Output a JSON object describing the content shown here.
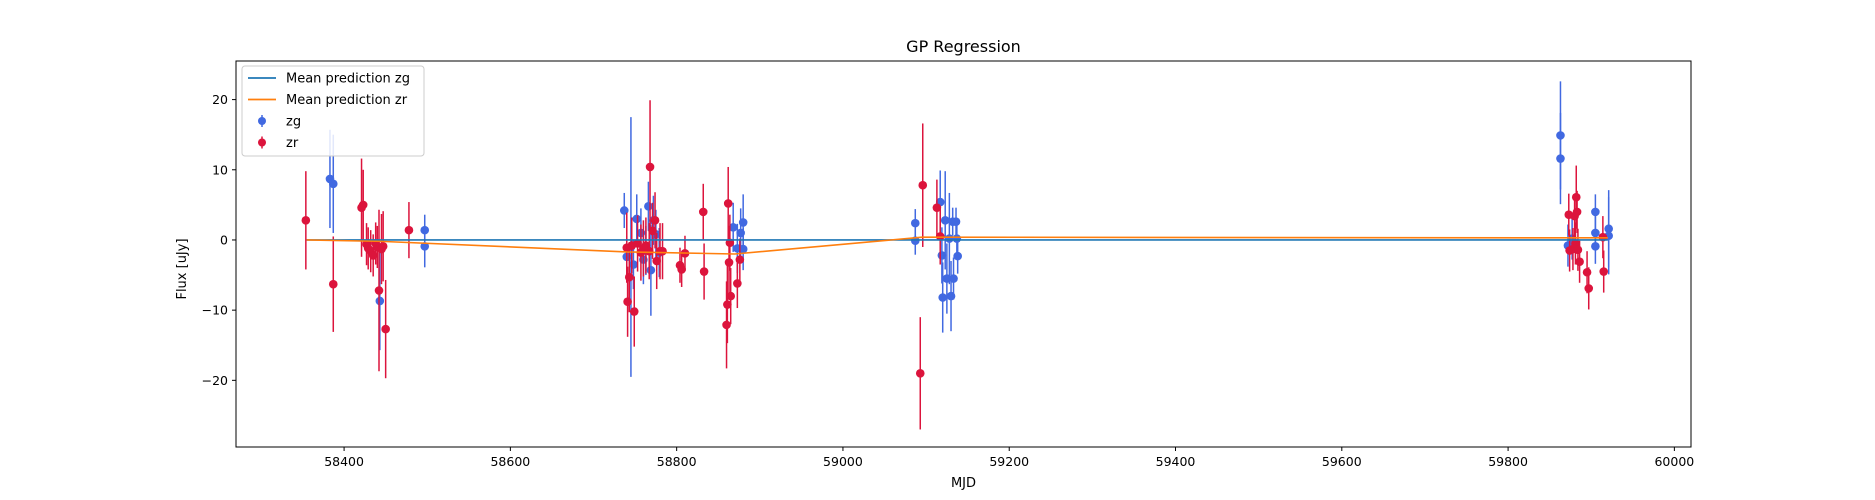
{
  "chart_data": {
    "type": "scatter",
    "title": "GP Regression",
    "xlabel": "MJD",
    "ylabel": "Flux [uJy]",
    "xlim": [
      58270,
      60020
    ],
    "ylim": [
      -29.5,
      25.5
    ],
    "xticks": [
      58400,
      58600,
      58800,
      59000,
      59200,
      59400,
      59600,
      59800,
      60000
    ],
    "yticks": [
      -20,
      -10,
      0,
      10,
      20
    ],
    "ytick_labels": [
      "−20",
      "−10",
      "0",
      "10",
      "20"
    ],
    "grid": false,
    "legend": {
      "location": "top-left",
      "entries": [
        {
          "label": "Mean prediction zg",
          "kind": "line",
          "color": "#1f77b4"
        },
        {
          "label": "Mean prediction zr",
          "kind": "line",
          "color": "#ff7f0e"
        },
        {
          "label": "zg",
          "kind": "errorbar",
          "color": "#4169e1"
        },
        {
          "label": "zr",
          "kind": "errorbar",
          "color": "#dc143c"
        }
      ]
    },
    "lines": [
      {
        "name": "Mean prediction zg",
        "color": "#1f77b4",
        "x": [
          58355,
          59920
        ],
        "y": [
          0.0,
          0.0
        ]
      },
      {
        "name": "Mean prediction zr",
        "color": "#ff7f0e",
        "x": [
          58355,
          58445,
          58740,
          58870,
          59095,
          59870,
          59920
        ],
        "y": [
          0.0,
          -0.2,
          -1.7,
          -2.0,
          0.4,
          0.3,
          0.3
        ]
      }
    ],
    "series": [
      {
        "name": "zg",
        "color": "#4169e1",
        "points": [
          {
            "x": 58383,
            "y": 8.7,
            "err": 7.0
          },
          {
            "x": 58387,
            "y": 8.0,
            "err": 7.0
          },
          {
            "x": 58443,
            "y": -8.7,
            "err": 7.0
          },
          {
            "x": 58497,
            "y": 1.4,
            "err": 2.2
          },
          {
            "x": 58497,
            "y": -0.9,
            "err": 3.0
          },
          {
            "x": 58737,
            "y": 4.2,
            "err": 2.5
          },
          {
            "x": 58740,
            "y": -2.4,
            "err": 3.0
          },
          {
            "x": 58745,
            "y": -1.0,
            "err": 18.5
          },
          {
            "x": 58748,
            "y": -3.5,
            "err": 3.5
          },
          {
            "x": 58752,
            "y": 3.0,
            "err": 3.5
          },
          {
            "x": 58757,
            "y": 1.0,
            "err": 3.5
          },
          {
            "x": 58760,
            "y": -2.8,
            "err": 3.5
          },
          {
            "x": 58763,
            "y": -1.5,
            "err": 3.5
          },
          {
            "x": 58766,
            "y": 4.8,
            "err": 3.5
          },
          {
            "x": 58769,
            "y": -4.3,
            "err": 6.5
          },
          {
            "x": 58772,
            "y": 2.8,
            "err": 3.5
          },
          {
            "x": 58775,
            "y": 0.8,
            "err": 3.5
          },
          {
            "x": 58779,
            "y": -1.8,
            "err": 3.5
          },
          {
            "x": 58868,
            "y": 1.8,
            "err": 3.5
          },
          {
            "x": 58873,
            "y": -1.2,
            "err": 3.5
          },
          {
            "x": 58877,
            "y": 1.0,
            "err": 3.5
          },
          {
            "x": 58880,
            "y": 2.5,
            "err": 4.0
          },
          {
            "x": 58880,
            "y": -1.3,
            "err": 3.0
          },
          {
            "x": 59087,
            "y": 2.4,
            "err": 2.0
          },
          {
            "x": 59087,
            "y": -0.1,
            "err": 2.0
          },
          {
            "x": 59117,
            "y": 5.4,
            "err": 4.5
          },
          {
            "x": 59119,
            "y": -2.2,
            "err": 4.0
          },
          {
            "x": 59120,
            "y": -8.2,
            "err": 5.0
          },
          {
            "x": 59123,
            "y": 2.8,
            "err": 7.0
          },
          {
            "x": 59125,
            "y": -5.5,
            "err": 5.0
          },
          {
            "x": 59128,
            "y": 0.2,
            "err": 6.5
          },
          {
            "x": 59130,
            "y": -8.0,
            "err": 5.0
          },
          {
            "x": 59132,
            "y": 2.6,
            "err": 2.0
          },
          {
            "x": 59133,
            "y": -5.5,
            "err": 3.0
          },
          {
            "x": 59136,
            "y": 2.6,
            "err": 2.0
          },
          {
            "x": 59137,
            "y": 0.2,
            "err": 2.5
          },
          {
            "x": 59138,
            "y": -2.3,
            "err": 2.5
          },
          {
            "x": 59863,
            "y": 14.9,
            "err": 7.7
          },
          {
            "x": 59863,
            "y": 11.6,
            "err": 6.5
          },
          {
            "x": 59872,
            "y": -0.8,
            "err": 3.0
          },
          {
            "x": 59877,
            "y": 0.2,
            "err": 3.0
          },
          {
            "x": 59905,
            "y": 4.0,
            "err": 2.5
          },
          {
            "x": 59905,
            "y": 1.0,
            "err": 2.5
          },
          {
            "x": 59905,
            "y": -0.9,
            "err": 2.5
          },
          {
            "x": 59921,
            "y": 1.6,
            "err": 5.5
          },
          {
            "x": 59921,
            "y": 0.6,
            "err": 5.5
          }
        ]
      },
      {
        "name": "zr",
        "color": "#dc143c",
        "points": [
          {
            "x": 58354,
            "y": 2.8,
            "err": 7.0
          },
          {
            "x": 58387,
            "y": -6.3,
            "err": 6.8
          },
          {
            "x": 58421,
            "y": 4.6,
            "err": 7.0
          },
          {
            "x": 58423,
            "y": 5.0,
            "err": 5.0
          },
          {
            "x": 58427,
            "y": -0.6,
            "err": 3.0
          },
          {
            "x": 58429,
            "y": -1.2,
            "err": 3.0
          },
          {
            "x": 58432,
            "y": -1.6,
            "err": 3.0
          },
          {
            "x": 58435,
            "y": -2.2,
            "err": 3.0
          },
          {
            "x": 58438,
            "y": -0.5,
            "err": 3.0
          },
          {
            "x": 58440,
            "y": -1.0,
            "err": 3.0
          },
          {
            "x": 58442,
            "y": -7.2,
            "err": 11.5
          },
          {
            "x": 58445,
            "y": -1.3,
            "err": 5.0
          },
          {
            "x": 58447,
            "y": -0.9,
            "err": 5.0
          },
          {
            "x": 58450,
            "y": -12.7,
            "err": 7.0
          },
          {
            "x": 58478,
            "y": 1.4,
            "err": 4.0
          },
          {
            "x": 58740,
            "y": -1.1,
            "err": 5.0
          },
          {
            "x": 58741,
            "y": -8.8,
            "err": 5.0
          },
          {
            "x": 58743,
            "y": -5.3,
            "err": 5.0
          },
          {
            "x": 58746,
            "y": -0.8,
            "err": 4.0
          },
          {
            "x": 58749,
            "y": -10.2,
            "err": 5.0
          },
          {
            "x": 58753,
            "y": -0.5,
            "err": 4.0
          },
          {
            "x": 58757,
            "y": -1.8,
            "err": 4.0
          },
          {
            "x": 58760,
            "y": -1.2,
            "err": 4.0
          },
          {
            "x": 58763,
            "y": -0.8,
            "err": 4.0
          },
          {
            "x": 58767,
            "y": -1.6,
            "err": 4.0
          },
          {
            "x": 58768,
            "y": 10.4,
            "err": 9.5
          },
          {
            "x": 58771,
            "y": 1.3,
            "err": 4.0
          },
          {
            "x": 58774,
            "y": 2.8,
            "err": 4.0
          },
          {
            "x": 58776,
            "y": -3.0,
            "err": 4.0
          },
          {
            "x": 58780,
            "y": -1.6,
            "err": 4.0
          },
          {
            "x": 58783,
            "y": -1.6,
            "err": 4.0
          },
          {
            "x": 58804,
            "y": -3.6,
            "err": 2.5
          },
          {
            "x": 58806,
            "y": -4.2,
            "err": 2.5
          },
          {
            "x": 58810,
            "y": -1.9,
            "err": 2.5
          },
          {
            "x": 58832,
            "y": 4.0,
            "err": 4.0
          },
          {
            "x": 58833,
            "y": -4.5,
            "err": 4.0
          },
          {
            "x": 58860,
            "y": -12.1,
            "err": 6.2
          },
          {
            "x": 58861,
            "y": -9.2,
            "err": 5.5
          },
          {
            "x": 58862,
            "y": 5.2,
            "err": 5.2
          },
          {
            "x": 58863,
            "y": -3.2,
            "err": 5.2
          },
          {
            "x": 58864,
            "y": -0.4,
            "err": 4.0
          },
          {
            "x": 58865,
            "y": -8.0,
            "err": 4.0
          },
          {
            "x": 58873,
            "y": -6.2,
            "err": 3.5
          },
          {
            "x": 58876,
            "y": -2.8,
            "err": 3.0
          },
          {
            "x": 59093,
            "y": -19.0,
            "err": 8.0
          },
          {
            "x": 59096,
            "y": 7.8,
            "err": 8.8
          },
          {
            "x": 59113,
            "y": 4.6,
            "err": 4.0
          },
          {
            "x": 59117,
            "y": 0.5,
            "err": 4.0
          },
          {
            "x": 59873,
            "y": 3.6,
            "err": 3.0
          },
          {
            "x": 59874,
            "y": -1.5,
            "err": 3.0
          },
          {
            "x": 59878,
            "y": -1.3,
            "err": 3.0
          },
          {
            "x": 59880,
            "y": 3.4,
            "err": 3.0
          },
          {
            "x": 59881,
            "y": -0.5,
            "err": 3.0
          },
          {
            "x": 59882,
            "y": 6.1,
            "err": 4.5
          },
          {
            "x": 59883,
            "y": 4.0,
            "err": 3.0
          },
          {
            "x": 59884,
            "y": -1.4,
            "err": 3.0
          },
          {
            "x": 59886,
            "y": -3.1,
            "err": 3.0
          },
          {
            "x": 59895,
            "y": -4.6,
            "err": 3.0
          },
          {
            "x": 59897,
            "y": -6.9,
            "err": 3.0
          },
          {
            "x": 59914,
            "y": 0.4,
            "err": 3.0
          },
          {
            "x": 59915,
            "y": -4.5,
            "err": 3.0
          }
        ]
      }
    ]
  }
}
